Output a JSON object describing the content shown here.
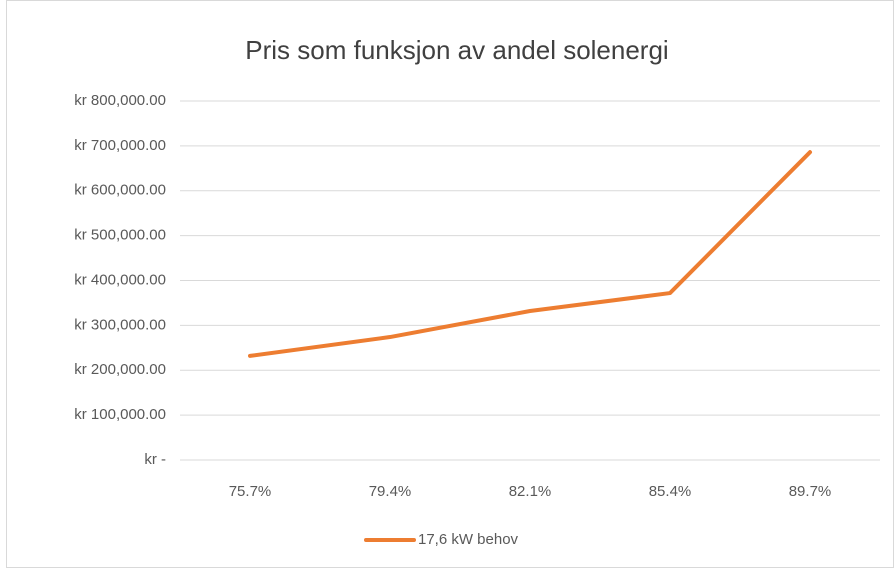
{
  "chart_data": {
    "type": "line",
    "title": "Pris som funksjon av andel solenergi",
    "categories": [
      "75.7%",
      "79.4%",
      "82.1%",
      "85.4%",
      "89.7%"
    ],
    "series": [
      {
        "name": "17,6 kW behov",
        "color": "#ed7d31",
        "values": [
          232000,
          274000,
          332000,
          372000,
          686000
        ]
      }
    ],
    "ylim": [
      0,
      800000
    ],
    "yticks": [
      {
        "value": 0,
        "label": "kr -"
      },
      {
        "value": 100000,
        "label": "kr 100,000.00"
      },
      {
        "value": 200000,
        "label": "kr 200,000.00"
      },
      {
        "value": 300000,
        "label": "kr 300,000.00"
      },
      {
        "value": 400000,
        "label": "kr 400,000.00"
      },
      {
        "value": 500000,
        "label": "kr 500,000.00"
      },
      {
        "value": 600000,
        "label": "kr 600,000.00"
      },
      {
        "value": 700000,
        "label": "kr 700,000.00"
      },
      {
        "value": 800000,
        "label": "kr 800,000.00"
      }
    ],
    "grid": true,
    "legend": "bottom"
  }
}
